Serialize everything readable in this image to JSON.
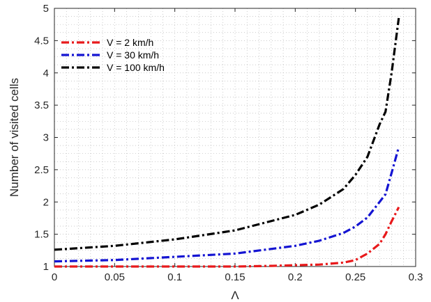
{
  "chart_data": {
    "type": "line",
    "xlabel": "Λ",
    "ylabel": "Number of visited cells",
    "xlim": [
      0,
      0.3
    ],
    "ylim": [
      1,
      5
    ],
    "xticks": [
      0,
      0.05,
      0.1,
      0.15,
      0.2,
      0.25,
      0.3
    ],
    "xtick_labels": [
      "0",
      "0.05",
      "0.1",
      "0.15",
      "0.2",
      "0.25",
      "0.3"
    ],
    "yticks": [
      1,
      1.5,
      2,
      2.5,
      3,
      3.5,
      4,
      4.5,
      5
    ],
    "ytick_labels": [
      "1",
      "1.5",
      "2",
      "2.5",
      "3",
      "3.5",
      "4",
      "4.5",
      "5"
    ],
    "grid": "dotted-minor",
    "legend_position": "top-left",
    "series": [
      {
        "name": "V = 2 km/h",
        "color": "#e8191b",
        "x": [
          0,
          0.05,
          0.1,
          0.15,
          0.18,
          0.2,
          0.22,
          0.24,
          0.25,
          0.26,
          0.27,
          0.275,
          0.28,
          0.286
        ],
        "y": [
          1.0,
          1.0,
          1.0,
          1.0,
          1.01,
          1.02,
          1.03,
          1.06,
          1.1,
          1.2,
          1.35,
          1.5,
          1.7,
          1.92
        ]
      },
      {
        "name": "V = 30 km/h",
        "color": "#1414d2",
        "x": [
          0,
          0.05,
          0.1,
          0.15,
          0.2,
          0.22,
          0.24,
          0.25,
          0.26,
          0.27,
          0.275,
          0.28,
          0.286
        ],
        "y": [
          1.08,
          1.1,
          1.15,
          1.2,
          1.32,
          1.4,
          1.52,
          1.62,
          1.76,
          2.0,
          2.12,
          2.45,
          2.85
        ]
      },
      {
        "name": "V = 100 km/h",
        "color": "#000000",
        "x": [
          0,
          0.05,
          0.1,
          0.15,
          0.2,
          0.22,
          0.24,
          0.25,
          0.26,
          0.27,
          0.275,
          0.28,
          0.286
        ],
        "y": [
          1.26,
          1.32,
          1.42,
          1.56,
          1.8,
          1.96,
          2.2,
          2.42,
          2.7,
          3.2,
          3.4,
          4.0,
          4.85
        ]
      }
    ]
  }
}
